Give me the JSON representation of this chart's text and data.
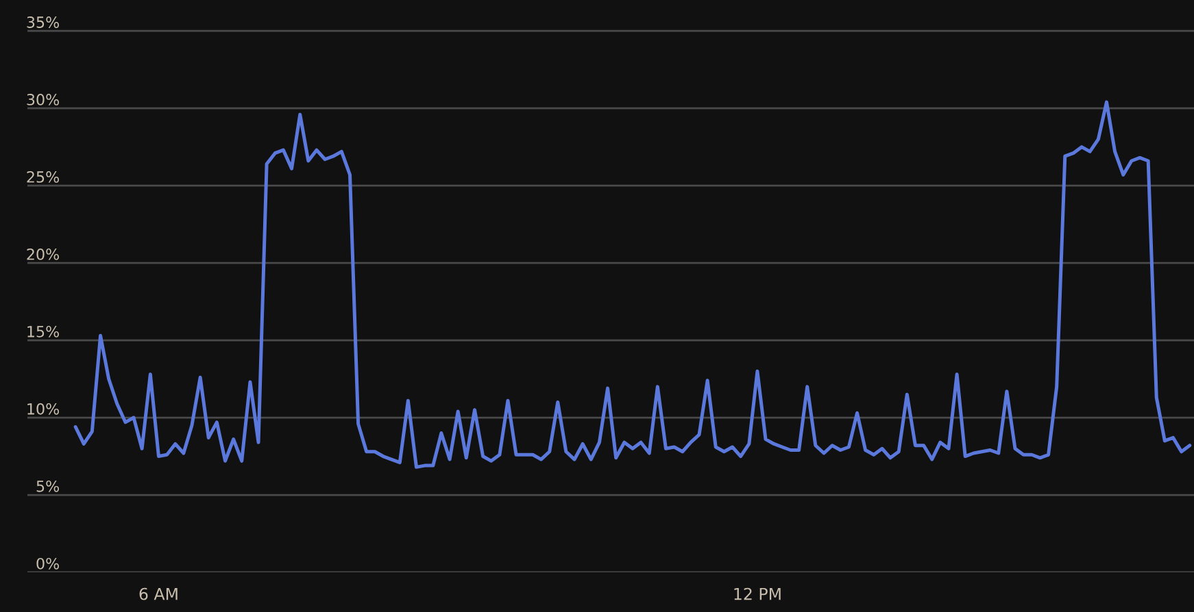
{
  "chart_data": {
    "type": "line",
    "x": [
      5.167,
      5.25,
      5.333,
      5.417,
      5.5,
      5.583,
      5.667,
      5.75,
      5.833,
      5.917,
      6,
      6.083,
      6.167,
      6.25,
      6.333,
      6.417,
      6.5,
      6.583,
      6.667,
      6.75,
      6.833,
      6.917,
      7,
      7.083,
      7.167,
      7.25,
      7.333,
      7.417,
      7.5,
      7.583,
      7.667,
      7.75,
      7.833,
      7.917,
      8,
      8.083,
      8.167,
      8.25,
      8.333,
      8.417,
      8.5,
      8.583,
      8.667,
      8.75,
      8.833,
      8.917,
      9,
      9.083,
      9.167,
      9.25,
      9.333,
      9.417,
      9.5,
      9.583,
      9.667,
      9.75,
      9.833,
      9.917,
      10,
      10.083,
      10.167,
      10.25,
      10.333,
      10.417,
      10.5,
      10.583,
      10.667,
      10.75,
      10.833,
      10.917,
      11,
      11.083,
      11.167,
      11.25,
      11.333,
      11.417,
      11.5,
      11.583,
      11.667,
      11.75,
      11.833,
      11.917,
      12,
      12.083,
      12.167,
      12.25,
      12.333,
      12.417,
      12.5,
      12.583,
      12.667,
      12.75,
      12.833,
      12.917,
      13,
      13.083,
      13.167,
      13.25,
      13.333,
      13.417,
      13.5,
      13.583,
      13.667,
      13.75,
      13.833,
      13.917,
      14,
      14.083,
      14.167,
      14.25,
      14.333,
      14.417,
      14.5,
      14.583,
      14.667,
      14.75,
      14.833,
      14.917,
      15,
      15.083,
      15.167,
      15.25,
      15.333,
      15.417,
      15.5,
      15.583,
      15.667,
      15.75,
      15.833,
      15.917,
      16,
      16.083,
      16.167,
      16.25,
      16.333
    ],
    "series": [
      {
        "color": "#5b78dc",
        "values": [
          9.4,
          8.3,
          9.1,
          15.3,
          12.5,
          10.9,
          9.7,
          10.0,
          8.0,
          12.8,
          7.5,
          7.6,
          8.3,
          7.7,
          9.5,
          12.6,
          8.7,
          9.7,
          7.2,
          8.6,
          7.2,
          12.3,
          8.4,
          26.4,
          27.1,
          27.3,
          26.1,
          29.6,
          26.6,
          27.3,
          26.7,
          26.9,
          27.2,
          25.7,
          9.6,
          7.8,
          7.8,
          7.5,
          7.3,
          7.1,
          11.1,
          6.8,
          6.9,
          6.9,
          9.0,
          7.3,
          10.4,
          7.4,
          10.5,
          7.5,
          7.2,
          7.6,
          11.1,
          7.6,
          7.6,
          7.6,
          7.3,
          7.8,
          11.0,
          7.8,
          7.3,
          8.3,
          7.3,
          8.4,
          11.9,
          7.4,
          8.4,
          8.0,
          8.4,
          7.7,
          12.0,
          8.0,
          8.1,
          7.8,
          8.4,
          8.9,
          12.4,
          8.1,
          7.8,
          8.1,
          7.5,
          8.3,
          13.0,
          8.6,
          8.3,
          8.1,
          7.9,
          7.9,
          12.0,
          8.2,
          7.7,
          8.2,
          7.9,
          8.1,
          10.3,
          7.9,
          7.6,
          8.0,
          7.4,
          7.8,
          11.5,
          8.2,
          8.2,
          7.3,
          8.4,
          8.0,
          12.8,
          7.5,
          7.7,
          7.8,
          7.9,
          7.7,
          11.7,
          8.0,
          7.6,
          7.6,
          7.4,
          7.6,
          12.0,
          26.9,
          27.1,
          27.5,
          27.2,
          28.0,
          30.4,
          27.2,
          25.7,
          26.6,
          26.8,
          26.6,
          11.3,
          8.5,
          8.7,
          7.8,
          8.2
        ]
      }
    ],
    "xlim": [
      4.685,
      16.376
    ],
    "xticks": [
      {
        "value": 6,
        "label": "6 AM"
      },
      {
        "value": 12,
        "label": "12 PM"
      }
    ],
    "ylim": [
      0,
      37
    ],
    "yticks": [
      {
        "value": 0,
        "label": "0%"
      },
      {
        "value": 5,
        "label": "5%"
      },
      {
        "value": 10,
        "label": "10%"
      },
      {
        "value": 15,
        "label": "15%"
      },
      {
        "value": 20,
        "label": "20%"
      },
      {
        "value": 25,
        "label": "25%"
      },
      {
        "value": 30,
        "label": "30%"
      },
      {
        "value": 35,
        "label": "35%"
      }
    ],
    "grid": "y"
  }
}
